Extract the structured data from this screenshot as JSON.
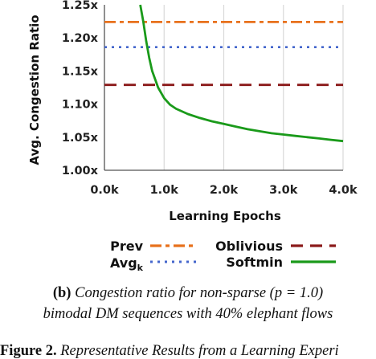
{
  "chart_data": {
    "type": "line",
    "xlabel": "Learning Epochs",
    "ylabel": "Avg. Congestion Ratio",
    "xlim": [
      0,
      4000
    ],
    "ylim": [
      1.0,
      1.25
    ],
    "x_ticks": [
      {
        "value": 0,
        "label": "0.0k"
      },
      {
        "value": 1000,
        "label": "1.0k"
      },
      {
        "value": 2000,
        "label": "2.0k"
      },
      {
        "value": 3000,
        "label": "3.0k"
      },
      {
        "value": 4000,
        "label": "4.0k"
      }
    ],
    "y_ticks": [
      {
        "value": 1.0,
        "label": "1.00x"
      },
      {
        "value": 1.05,
        "label": "1.05x"
      },
      {
        "value": 1.1,
        "label": "1.10x"
      },
      {
        "value": 1.15,
        "label": "1.15x"
      },
      {
        "value": 1.2,
        "label": "1.20x"
      },
      {
        "value": 1.25,
        "label": "1.25x"
      }
    ],
    "grid": "vertical",
    "legend_position": "bottom",
    "series": [
      {
        "name": "Prev",
        "style": "dash-dot",
        "color": "#e8711c",
        "x": [
          0,
          4000
        ],
        "y": [
          1.224,
          1.224
        ]
      },
      {
        "name": "Oblivious",
        "style": "dashed",
        "color": "#8b1a1a",
        "x": [
          0,
          4000
        ],
        "y": [
          1.129,
          1.129
        ]
      },
      {
        "name": "Avg",
        "subscript": "k",
        "style": "dotted",
        "color": "#4466cc",
        "x": [
          0,
          4000
        ],
        "y": [
          1.186,
          1.186
        ]
      },
      {
        "name": "Softmin",
        "style": "solid",
        "color": "#1a9a1a",
        "x": [
          600,
          650,
          700,
          750,
          800,
          900,
          1000,
          1100,
          1200,
          1400,
          1600,
          1800,
          2000,
          2200,
          2400,
          2600,
          2800,
          3000,
          3200,
          3400,
          3600,
          3800,
          4000
        ],
        "y": [
          1.25,
          1.225,
          1.195,
          1.17,
          1.15,
          1.125,
          1.109,
          1.099,
          1.093,
          1.085,
          1.079,
          1.074,
          1.07,
          1.066,
          1.062,
          1.059,
          1.056,
          1.054,
          1.052,
          1.05,
          1.048,
          1.046,
          1.044
        ]
      }
    ]
  },
  "caption": {
    "label": "(b)",
    "line1_text": "Congestion ratio for non-sparse (",
    "line1_math": "p = 1.0",
    "line1_end": ")",
    "line2": "bimodal DM sequences with 40% elephant flows",
    "line3_label": "Figure 2.",
    "line3_text": "Representative Results from a Learning Experi"
  }
}
